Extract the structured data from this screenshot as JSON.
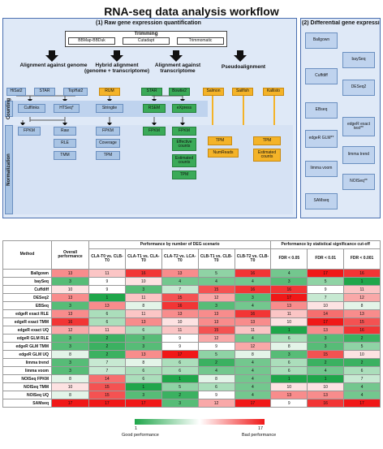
{
  "title": "RNA-seq data analysis workflow",
  "panel1": {
    "title": "(1) Raw gene expression quantification",
    "trimming": {
      "label": "Trimming",
      "tools": [
        "BBMap-BBDuk",
        "Cutadapt",
        "Trimmomatic"
      ]
    },
    "headers": [
      "Alignment against genome",
      "Hybrid alignment (genome + transcriptome)",
      "Alignment against transcriptome",
      "Pseudoalignment"
    ],
    "aligners_genome": [
      "HiSat2",
      "STAR",
      "TopHat2"
    ],
    "aligner_hybrid": "RUM",
    "aligners_transcriptome": [
      "STAR",
      "Bowtie2"
    ],
    "pseudo_tools": [
      "Salmon",
      "Sailfish",
      "Kallisto"
    ],
    "counting_label": "Counting",
    "normalization_label": "Normalization",
    "counting": {
      "genome": [
        "Cufflinks",
        "HTSeq*"
      ],
      "hybrid": "Stringtie",
      "transcriptome": [
        "RSEM",
        "eXpress"
      ]
    },
    "norm_genome_a": [
      "FPKM"
    ],
    "norm_genome_b": [
      "Raw",
      "RLE",
      "TMM"
    ],
    "norm_hybrid": [
      "FPKM",
      "Coverage",
      "TPM"
    ],
    "norm_rsem": [
      "FPKM"
    ],
    "norm_express": [
      "FPKM",
      "Effective counts",
      "Estimated counts",
      "TPM"
    ],
    "norm_pseudo_a": [
      "TPM",
      "NumReads"
    ],
    "norm_pseudo_b": [
      "TPM",
      "Estimated counts"
    ]
  },
  "panel2": {
    "title": "(2) Differential gene expression",
    "methods": [
      "Ballgown",
      "baySeq",
      "Cuffdiff",
      "DESeq2",
      "EBseq",
      "edgeR exact test**",
      "edgeR GLM**",
      "limma trend",
      "limma voom",
      "NOISeq**",
      "SAMseq"
    ]
  },
  "table": {
    "col_method": "Method",
    "col_overall": "Overall performance",
    "group_deg": "Performance by number of DEG scenario",
    "group_fdr": "Performance by statistical significance cut-off",
    "scenarios": [
      "CLA-T0 vs. CLB-T0",
      "CLA-T1 vs. CLA-T0",
      "CLA-T2 vs. LCA-T0",
      "CLB-T1 vs. CLB-T0",
      "CLB-T2 vs. CLB-T0"
    ],
    "fdr": [
      "FDR < 0.05",
      "FDR < 0.01",
      "FDR < 0.001"
    ],
    "rows": [
      {
        "method": "Ballgown",
        "values": [
          13,
          11,
          16,
          13,
          5,
          16,
          4,
          17,
          16
        ]
      },
      {
        "method": "baySeq",
        "values": [
          3,
          9,
          10,
          4,
          4,
          4,
          3,
          5,
          1
        ]
      },
      {
        "method": "Cuffdiff",
        "values": [
          10,
          9,
          3,
          7,
          15,
          16,
          16,
          9,
          11
        ]
      },
      {
        "method": "DESeq2",
        "values": [
          13,
          1,
          11,
          15,
          12,
          3,
          17,
          7,
          12
        ]
      },
      {
        "method": "EBSeq",
        "values": [
          3,
          13,
          8,
          16,
          3,
          4,
          13,
          10,
          8
        ]
      },
      {
        "method": "edgeR exact RLE",
        "values": [
          13,
          6,
          11,
          13,
          13,
          16,
          11,
          14,
          13
        ]
      },
      {
        "method": "edgeR exact TMM",
        "values": [
          16,
          6,
          13,
          10,
          13,
          13,
          10,
          17,
          15
        ]
      },
      {
        "method": "edgeR exact UQ",
        "values": [
          12,
          11,
          6,
          11,
          15,
          11,
          1,
          13,
          16
        ]
      },
      {
        "method": "edgeR GLM RLE",
        "values": [
          3,
          2,
          3,
          9,
          12,
          4,
          6,
          3,
          2
        ]
      },
      {
        "method": "edgeR GLM TMM",
        "values": [
          3,
          2,
          3,
          9,
          9,
          12,
          8,
          3,
          5
        ]
      },
      {
        "method": "edgeR GLM UQ",
        "values": [
          8,
          2,
          13,
          17,
          5,
          8,
          3,
          15,
          10
        ]
      },
      {
        "method": "limma trend",
        "values": [
          3,
          7,
          8,
          6,
          2,
          4,
          6,
          2,
          2
        ]
      },
      {
        "method": "limma voom",
        "values": [
          3,
          7,
          6,
          6,
          4,
          4,
          6,
          4,
          6
        ]
      },
      {
        "method": "NOISeq FPKM",
        "values": [
          8,
          14,
          6,
          1,
          8,
          4,
          1,
          1,
          7
        ]
      },
      {
        "method": "NOISeq TMM",
        "values": [
          10,
          15,
          1,
          5,
          6,
          4,
          10,
          10,
          4
        ]
      },
      {
        "method": "NOISeq UQ",
        "values": [
          8,
          15,
          3,
          2,
          9,
          4,
          13,
          13,
          4
        ]
      },
      {
        "method": "SAMseq",
        "values": [
          17,
          17,
          17,
          3,
          12,
          17,
          9,
          16,
          17
        ]
      }
    ]
  },
  "legend": {
    "min": "1",
    "max": "17",
    "good": "Good performance",
    "bad": "Bad performance",
    "low_color": "#1fa64a",
    "mid_color": "#ffffff",
    "high_color": "#f01818"
  }
}
